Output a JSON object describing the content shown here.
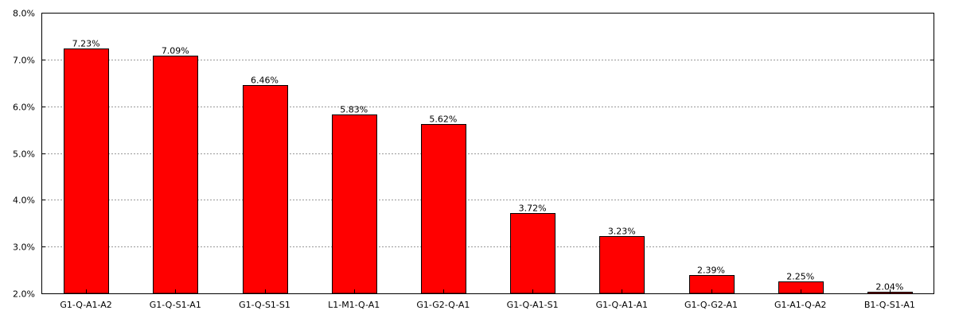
{
  "chart_data": {
    "type": "bar",
    "title": "",
    "xlabel": "",
    "ylabel": "",
    "categories": [
      "G1-Q-A1-A2",
      "G1-Q-S1-A1",
      "G1-Q-S1-S1",
      "L1-M1-Q-A1",
      "G1-G2-Q-A1",
      "G1-Q-A1-S1",
      "G1-Q-A1-A1",
      "G1-Q-G2-A1",
      "G1-A1-Q-A2",
      "B1-Q-S1-A1"
    ],
    "values": [
      7.23,
      7.09,
      6.46,
      5.83,
      5.62,
      3.72,
      3.23,
      2.39,
      2.25,
      2.04
    ],
    "value_labels": [
      "7.23%",
      "7.09%",
      "6.46%",
      "5.83%",
      "5.62%",
      "3.72%",
      "3.23%",
      "2.39%",
      "2.25%",
      "2.04%"
    ],
    "ylim": [
      2.0,
      8.0
    ],
    "yticks": [
      2.0,
      3.0,
      4.0,
      5.0,
      6.0,
      7.0,
      8.0
    ],
    "ytick_labels": [
      "2.0%",
      "3.0%",
      "4.0%",
      "5.0%",
      "6.0%",
      "7.0%",
      "8.0%"
    ],
    "grid": true,
    "legend": "none",
    "bar_color": "#ff0000",
    "bar_edge_color": "#000000",
    "grid_color": "#999999"
  }
}
